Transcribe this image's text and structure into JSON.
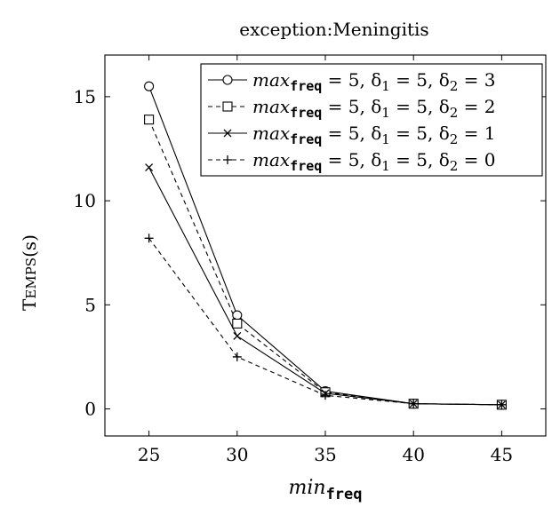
{
  "chart_data": {
    "type": "line",
    "title": "exception:Meningitis",
    "xlabel": {
      "base": "min",
      "sub": "freq"
    },
    "ylabel": "Temps(s)",
    "x": [
      25,
      30,
      35,
      40,
      45
    ],
    "xlim": [
      22.5,
      47.5
    ],
    "ylim": [
      -1.3,
      17.0
    ],
    "xticks": [
      25,
      30,
      35,
      40,
      45
    ],
    "yticks": [
      0,
      5,
      10,
      15
    ],
    "grid": false,
    "legend_position": "top-right",
    "series": [
      {
        "name": "max_freq = 5, δ1 = 5, δ2 = 3",
        "legend": {
          "v": "max",
          "sub": "freq",
          "rest": " = 5, δ",
          "s1": "1",
          "mid": " = 5, δ",
          "s2": "2",
          "end": " = 3"
        },
        "marker": "circle",
        "dash": "solid",
        "values": [
          15.5,
          4.5,
          0.85,
          0.25,
          0.2
        ]
      },
      {
        "name": "max_freq = 5, δ1 = 5, δ2 = 2",
        "legend": {
          "v": "max",
          "sub": "freq",
          "rest": " = 5, δ",
          "s1": "1",
          "mid": " = 5, δ",
          "s2": "2",
          "end": " = 2"
        },
        "marker": "square",
        "dash": "dashed",
        "values": [
          13.9,
          4.1,
          0.8,
          0.25,
          0.2
        ]
      },
      {
        "name": "max_freq = 5, δ1 = 5, δ2 = 1",
        "legend": {
          "v": "max",
          "sub": "freq",
          "rest": " = 5, δ",
          "s1": "1",
          "mid": " = 5, δ",
          "s2": "2",
          "end": " = 1"
        },
        "marker": "x",
        "dash": "solid",
        "values": [
          11.6,
          3.5,
          0.75,
          0.25,
          0.2
        ]
      },
      {
        "name": "max_freq = 5, δ1 = 5, δ2 = 0",
        "legend": {
          "v": "max",
          "sub": "freq",
          "rest": " = 5, δ",
          "s1": "1",
          "mid": " = 5, δ",
          "s2": "2",
          "end": " = 0"
        },
        "marker": "plus",
        "dash": "dashed",
        "values": [
          8.2,
          2.5,
          0.65,
          0.25,
          0.2
        ]
      }
    ]
  }
}
